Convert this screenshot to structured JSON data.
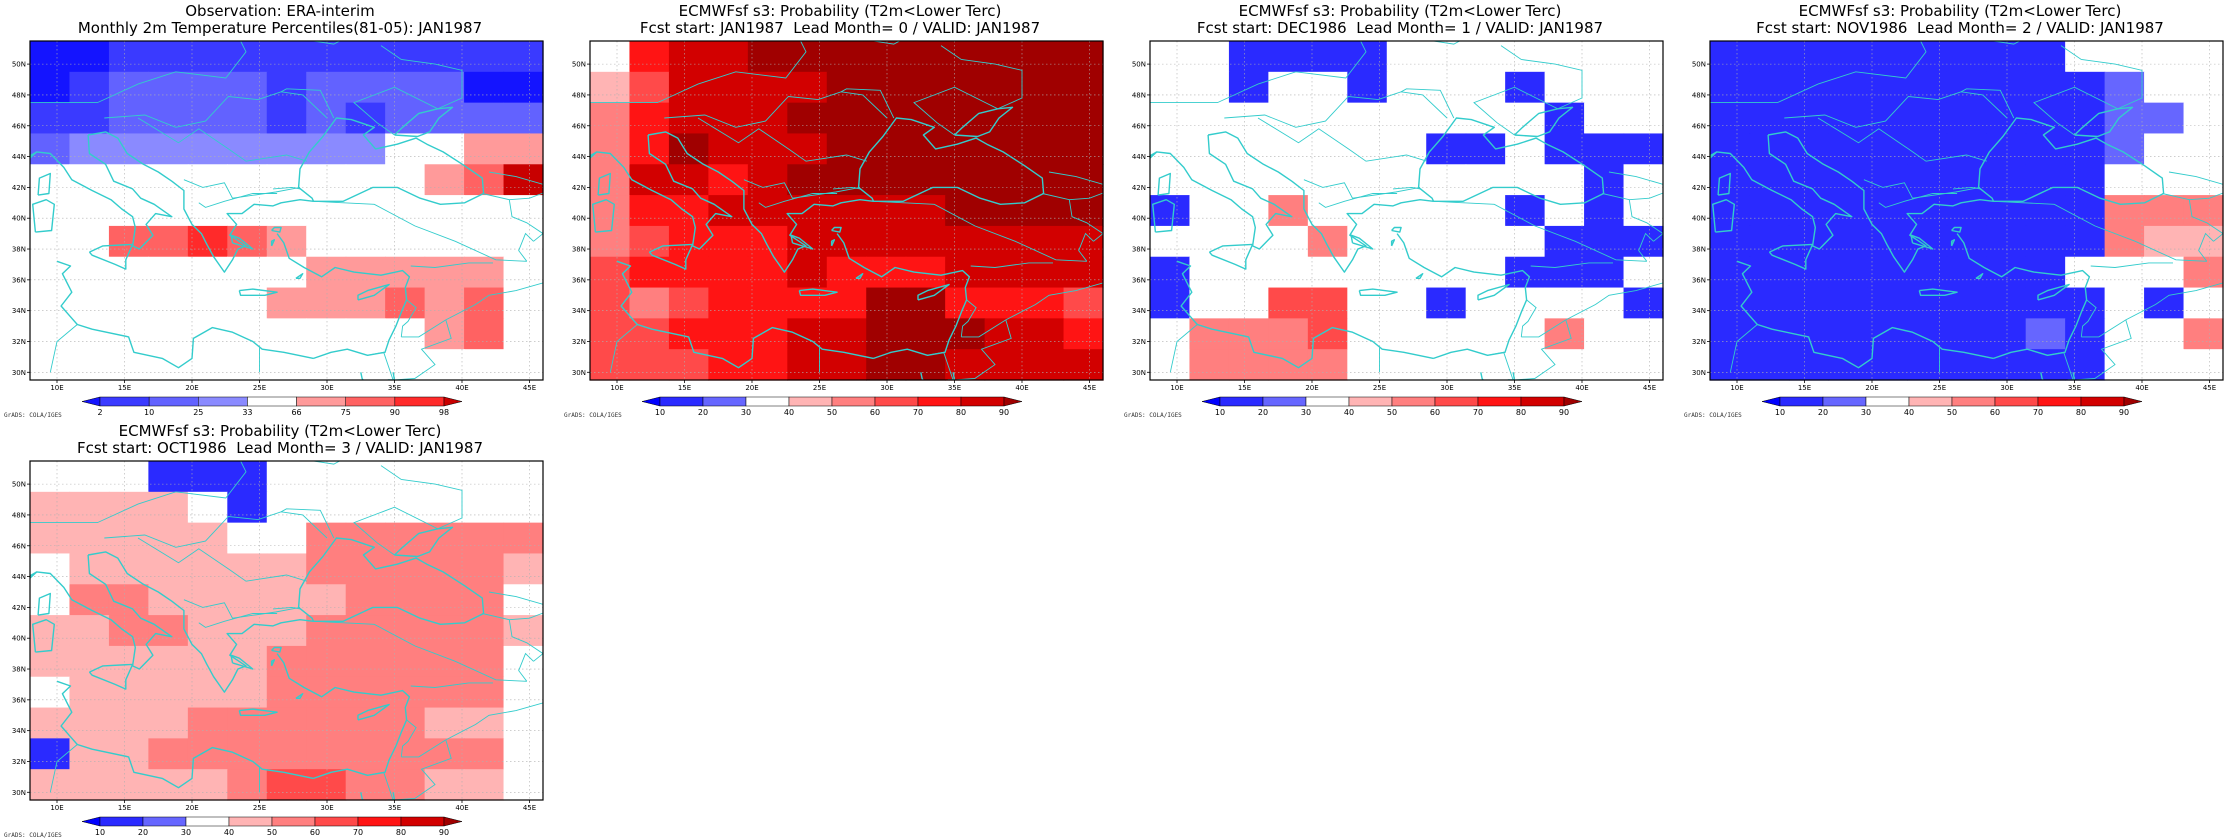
{
  "map_extent": {
    "lon": [
      8,
      46
    ],
    "lat": [
      29.5,
      51.5
    ]
  },
  "lon_ticks": [
    10,
    15,
    20,
    25,
    30,
    35,
    40,
    45
  ],
  "lat_ticks": [
    30,
    32,
    34,
    36,
    38,
    40,
    42,
    44,
    46,
    48,
    50
  ],
  "lon_tick_labels": [
    "10E",
    "15E",
    "20E",
    "25E",
    "30E",
    "35E",
    "40E",
    "45E"
  ],
  "lat_tick_labels": [
    "30N",
    "32N",
    "34N",
    "36N",
    "38N",
    "40N",
    "42N",
    "44N",
    "46N",
    "48N",
    "50N"
  ],
  "credit": "GrADS: COLA/IGES",
  "coast_color": "#33cccc",
  "scales": {
    "percentile": {
      "labels": [
        "2",
        "10",
        "25",
        "33",
        "66",
        "75",
        "90",
        "98"
      ],
      "colors": [
        "#1414ff",
        "#3a3aff",
        "#6262ff",
        "#8a8aff",
        "#ffffff",
        "#ff9a9a",
        "#ff6262",
        "#ff2a2a",
        "#c80000"
      ]
    },
    "probability": {
      "labels": [
        "10",
        "20",
        "30",
        "40",
        "50",
        "60",
        "70",
        "80",
        "90"
      ],
      "colors": [
        "#0000ff",
        "#2a2aff",
        "#6666ff",
        "#ffffff",
        "#ffb4b4",
        "#ff7f7f",
        "#ff4a4a",
        "#ff1414",
        "#d20000",
        "#a00000"
      ]
    }
  },
  "panels": [
    {
      "title1": "Observation: ERA-interim",
      "title2": "Monthly 2m Temperature Percentiles(81-05): JAN1987",
      "scale": "percentile",
      "grid": [
        "0011111111111",
        "0122221222200",
        "1122221212222",
        "2333333334455",
        "4444444444568",
        "4444444444444",
        "4466765444444",
        "4444444555554",
        "4444445556564",
        "4444444444564",
        "4444444444444"
      ]
    },
    {
      "title1": "ECMWFsf s3: Probability (T2m<Lower Terc)",
      "title2": "Fcst start: JAN1987  Lead Month= 0 / VALID: JAN1987",
      "scale": "probability",
      "grid": [
        "3788999999999",
        "4688889999999",
        "5788899999999",
        "5798889999999",
        "5887899999999",
        "5778888889999",
        "5677788888888",
        "6777787778888",
        "6567777997776",
        "6677788999887",
        "6667788998888"
      ]
    },
    {
      "title1": "ECMWFsf s3: Probability (T2m<Lower Terc)",
      "title2": "Fcst start: DEC1986  Lead Month= 1 / VALID: JAN1987",
      "scale": "probability",
      "grid": [
        "3311113333333",
        "3313313331333",
        "3333333333133",
        "3333333113111",
        "3333333333313",
        "1335333331313",
        "3333533333111",
        "1333333331113",
        "1336633133331",
        "3555633333533",
        "3555533333333"
      ]
    },
    {
      "title1": "ECMWFsf s3: Probability (T2m<Lower Terc)",
      "title2": "Fcst start: NOV1986  Lead Month= 2 / VALID: JAN1987",
      "scale": "probability",
      "grid": [
        "1111111113333",
        "1111111111233",
        "1111111111223",
        "1111111111233",
        "1111111111333",
        "1111111111555",
        "1111111111544",
        "1111111113335",
        "1111111111313",
        "1111111121335",
        "1111111111333"
      ]
    },
    {
      "title1": "ECMWFsf s3: Probability (T2m<Lower Terc)",
      "title2": "Fcst start: OCT1986  Lead Month= 3 / VALID: JAN1987",
      "scale": "probability",
      "grid": [
        "3331113333333",
        "4444313333333",
        "4444433555555",
        "3444444555554",
        "3554444455553",
        "4455444555554",
        "4444445555553",
        "3444445555553",
        "4444555555443",
        "1445555555553",
        "4444456655443"
      ]
    }
  ]
}
